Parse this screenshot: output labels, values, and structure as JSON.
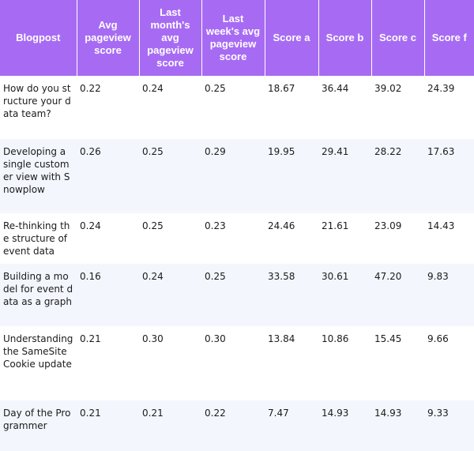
{
  "table": {
    "headers": [
      "Blogpost",
      "Avg pageview score",
      "Last month's avg pageview score",
      "Last week's avg pageview score",
      "Score a",
      "Score b",
      "Score c",
      "Score f"
    ],
    "rows": [
      [
        "How do you structure your data team?",
        "0.22",
        "0.24",
        "0.25",
        "18.67",
        "36.44",
        "39.02",
        "24.39"
      ],
      [
        "Developing a single customer view with Snowplow",
        "0.26",
        "0.25",
        "0.29",
        "19.95",
        "29.41",
        "28.22",
        "17.63"
      ],
      [
        "Re-thinking the structure of event data",
        "0.24",
        "0.25",
        "0.23",
        "24.46",
        "21.61",
        "23.09",
        "14.43"
      ],
      [
        "Building a model for event data as a graph",
        "0.16",
        "0.24",
        "0.25",
        "33.58",
        "30.61",
        "47.20",
        "9.83"
      ],
      [
        "Understanding the SameSite Cookie update",
        "0.21",
        "0.30",
        "0.30",
        "13.84",
        "10.86",
        "15.45",
        "9.66"
      ],
      [
        "Day of the Programmer",
        "0.21",
        "0.21",
        "0.22",
        "7.47",
        "14.93",
        "14.93",
        "9.33"
      ]
    ]
  },
  "colors": {
    "header_bg": "#a76bf3",
    "header_text": "#ffffff",
    "row_stripe": "#f3f6fd"
  }
}
